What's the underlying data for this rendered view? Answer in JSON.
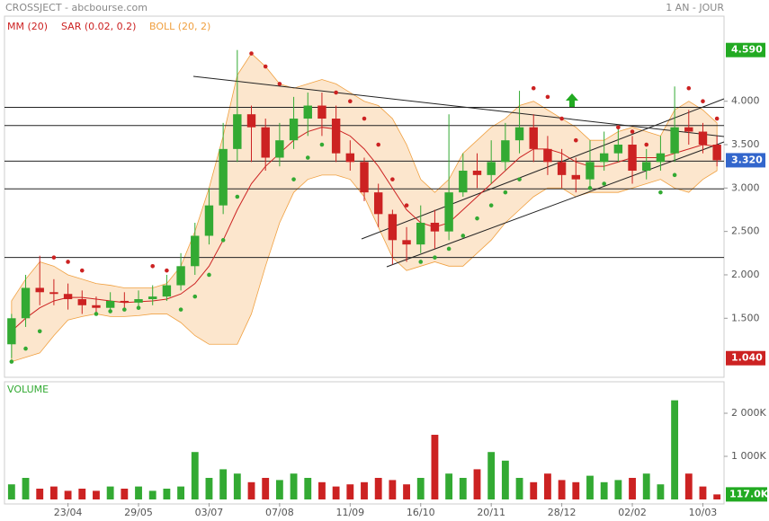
{
  "chart_data": {
    "type": "candlestick",
    "title": "CROSSJECT - abcbourse.com",
    "period": "1 AN - JOUR",
    "indicators": [
      {
        "name": "MM (20)",
        "color": "#cc2222"
      },
      {
        "name": "SAR (0.02, 0.2)",
        "color": "#cc2222"
      },
      {
        "name": "BOLL (20, 2)",
        "color": "#f0a040"
      }
    ],
    "categories": [
      null,
      null,
      null,
      null,
      "23/04",
      null,
      null,
      null,
      null,
      "29/05",
      null,
      null,
      null,
      null,
      "03/07",
      null,
      null,
      null,
      null,
      "07/08",
      null,
      null,
      null,
      null,
      "11/09",
      null,
      null,
      null,
      null,
      "16/10",
      null,
      null,
      null,
      null,
      "20/11",
      null,
      null,
      null,
      null,
      "28/12",
      null,
      null,
      null,
      null,
      "02/02",
      null,
      null,
      null,
      null,
      "10/03",
      null
    ],
    "open": [
      1.2,
      1.5,
      1.85,
      1.8,
      1.78,
      1.72,
      1.65,
      1.62,
      1.7,
      1.68,
      1.72,
      1.75,
      1.88,
      2.1,
      2.45,
      2.8,
      3.45,
      3.85,
      3.7,
      3.35,
      3.55,
      3.8,
      3.95,
      3.8,
      3.4,
      3.3,
      2.95,
      2.7,
      2.4,
      2.35,
      2.6,
      2.5,
      2.95,
      3.2,
      3.15,
      3.3,
      3.55,
      3.7,
      3.45,
      3.3,
      3.15,
      3.1,
      3.3,
      3.4,
      3.5,
      3.2,
      3.3,
      3.4,
      3.7,
      3.65,
      3.5
    ],
    "high": [
      1.55,
      2.0,
      2.22,
      1.95,
      1.9,
      1.82,
      1.75,
      1.8,
      1.8,
      1.82,
      1.88,
      2.0,
      2.25,
      2.6,
      3.0,
      3.75,
      4.59,
      3.95,
      3.8,
      3.75,
      4.05,
      4.1,
      4.1,
      3.95,
      3.55,
      3.35,
      3.05,
      2.75,
      2.55,
      2.8,
      2.75,
      3.85,
      3.4,
      3.4,
      3.55,
      3.75,
      4.12,
      3.85,
      3.6,
      3.45,
      3.35,
      3.55,
      3.65,
      3.7,
      3.6,
      3.45,
      3.6,
      4.17,
      3.9,
      3.75,
      3.6
    ],
    "low": [
      1.04,
      1.4,
      1.65,
      1.65,
      1.6,
      1.55,
      1.55,
      1.58,
      1.6,
      1.62,
      1.65,
      1.7,
      1.82,
      2.0,
      2.35,
      2.7,
      3.3,
      3.3,
      3.2,
      3.25,
      3.45,
      3.6,
      3.6,
      3.3,
      3.2,
      2.85,
      2.55,
      2.12,
      2.15,
      2.25,
      2.3,
      2.4,
      2.9,
      3.0,
      3.05,
      3.2,
      3.4,
      3.3,
      3.15,
      3.0,
      2.95,
      3.0,
      3.2,
      3.3,
      3.05,
      3.1,
      3.2,
      3.3,
      3.5,
      3.4,
      3.25
    ],
    "close": [
      1.5,
      1.85,
      1.8,
      1.78,
      1.72,
      1.65,
      1.62,
      1.7,
      1.68,
      1.72,
      1.75,
      1.88,
      2.1,
      2.45,
      2.8,
      3.45,
      3.85,
      3.7,
      3.35,
      3.55,
      3.8,
      3.95,
      3.8,
      3.4,
      3.3,
      2.95,
      2.7,
      2.4,
      2.35,
      2.6,
      2.5,
      2.95,
      3.2,
      3.15,
      3.3,
      3.55,
      3.7,
      3.45,
      3.3,
      3.15,
      3.1,
      3.3,
      3.4,
      3.5,
      3.2,
      3.3,
      3.4,
      3.7,
      3.65,
      3.5,
      3.32
    ],
    "ma": [
      1.35,
      1.5,
      1.62,
      1.7,
      1.74,
      1.74,
      1.72,
      1.7,
      1.68,
      1.69,
      1.7,
      1.72,
      1.78,
      1.9,
      2.1,
      2.4,
      2.75,
      3.05,
      3.25,
      3.4,
      3.55,
      3.65,
      3.7,
      3.68,
      3.6,
      3.45,
      3.25,
      3.0,
      2.75,
      2.6,
      2.55,
      2.6,
      2.75,
      2.9,
      3.05,
      3.2,
      3.35,
      3.45,
      3.45,
      3.4,
      3.3,
      3.25,
      3.25,
      3.3,
      3.35,
      3.35,
      3.35,
      3.4,
      3.45,
      3.5,
      3.48
    ],
    "boll_upper": [
      1.7,
      1.95,
      2.15,
      2.1,
      2.0,
      1.95,
      1.9,
      1.88,
      1.85,
      1.85,
      1.85,
      1.9,
      2.1,
      2.5,
      3.0,
      3.6,
      4.3,
      4.55,
      4.4,
      4.2,
      4.15,
      4.2,
      4.25,
      4.2,
      4.1,
      4.0,
      3.95,
      3.8,
      3.5,
      3.1,
      2.95,
      3.1,
      3.4,
      3.55,
      3.7,
      3.8,
      3.95,
      4.0,
      3.9,
      3.8,
      3.7,
      3.55,
      3.55,
      3.65,
      3.7,
      3.65,
      3.6,
      3.9,
      4.0,
      3.9,
      3.75
    ],
    "boll_lower": [
      1.0,
      1.05,
      1.1,
      1.3,
      1.48,
      1.52,
      1.55,
      1.52,
      1.52,
      1.53,
      1.55,
      1.55,
      1.45,
      1.3,
      1.2,
      1.2,
      1.2,
      1.55,
      2.1,
      2.6,
      2.95,
      3.1,
      3.15,
      3.15,
      3.1,
      2.9,
      2.55,
      2.2,
      2.05,
      2.1,
      2.15,
      2.1,
      2.1,
      2.25,
      2.4,
      2.6,
      2.75,
      2.9,
      3.0,
      3.0,
      2.9,
      2.95,
      2.95,
      2.95,
      3.0,
      3.05,
      3.1,
      3.0,
      2.95,
      3.1,
      3.2
    ],
    "sar": [
      1.0,
      1.15,
      1.35,
      2.2,
      2.15,
      2.05,
      1.55,
      1.58,
      1.6,
      1.62,
      2.1,
      2.05,
      1.6,
      1.75,
      2.0,
      2.4,
      2.9,
      4.55,
      4.4,
      4.2,
      3.1,
      3.35,
      3.5,
      4.1,
      4.0,
      3.8,
      3.5,
      3.1,
      2.8,
      2.15,
      2.2,
      2.3,
      2.45,
      2.65,
      2.8,
      2.95,
      3.1,
      4.15,
      4.05,
      3.8,
      3.55,
      3.0,
      3.05,
      3.7,
      3.65,
      3.5,
      2.95,
      3.15,
      4.15,
      4.0,
      3.8
    ],
    "levels": [
      3.93,
      3.72,
      3.31,
      2.99,
      2.2
    ],
    "ylim": [
      0.82,
      4.98
    ],
    "yticks": [
      {
        "value": 1.5,
        "label": "1.500"
      },
      {
        "value": 2,
        "label": "2.000"
      },
      {
        "value": 2.5,
        "label": "2.500"
      },
      {
        "value": 3,
        "label": "3.000"
      },
      {
        "value": 3.5,
        "label": "3.500"
      },
      {
        "value": 4,
        "label": "4.000"
      }
    ],
    "price_labels": [
      {
        "value": 4.59,
        "label": "4.590",
        "color": "#22aa22"
      },
      {
        "value": 3.32,
        "label": "3.320",
        "color": "#3366cc"
      },
      {
        "value": 1.04,
        "label": "1.040",
        "color": "#cc2222"
      }
    ],
    "volume_title": "VOLUME",
    "volume": [
      350,
      500,
      250,
      300,
      200,
      250,
      200,
      300,
      250,
      300,
      200,
      250,
      300,
      1100,
      500,
      700,
      600,
      400,
      500,
      450,
      600,
      500,
      400,
      300,
      350,
      400,
      500,
      450,
      350,
      500,
      1500,
      600,
      500,
      700,
      1100,
      900,
      500,
      400,
      600,
      450,
      400,
      550,
      400,
      450,
      500,
      600,
      350,
      2300,
      600,
      300,
      117
    ],
    "volume_ylim": [
      0,
      2730
    ],
    "volume_yticks": [
      {
        "value": 1000,
        "label": "1 000K"
      },
      {
        "value": 2000,
        "label": "2 000K"
      }
    ],
    "volume_last_label": {
      "value": 117,
      "label": "117.0K",
      "color": "#22aa22"
    },
    "up_color": "#33aa33",
    "down_color": "#cc2222"
  }
}
